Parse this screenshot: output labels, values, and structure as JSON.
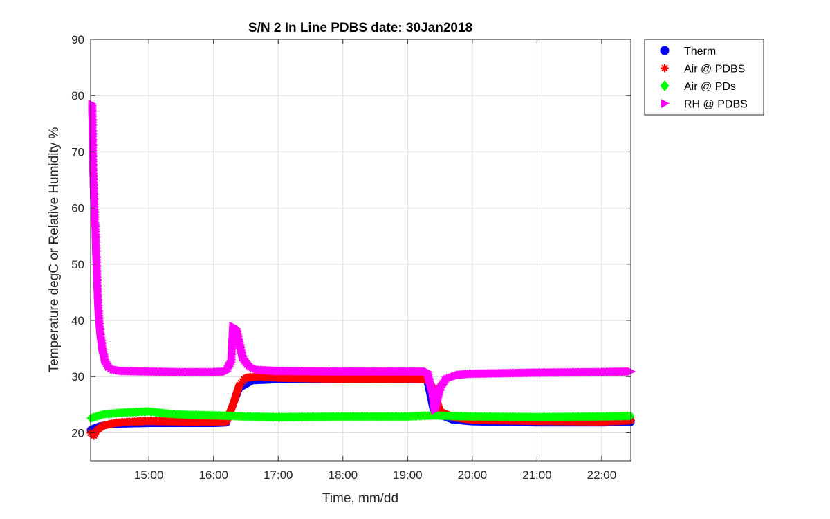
{
  "chart_data": {
    "type": "scatter",
    "title": "S/N 2 In Line PDBS date: 30Jan2018",
    "xlabel": "Time, mm/dd",
    "ylabel": "Temperature degC or Relative Humidity %",
    "x_unit": "hours of day",
    "xlim": [
      14.1,
      22.45
    ],
    "ylim": [
      15,
      90
    ],
    "x_ticks": [
      15,
      16,
      17,
      18,
      19,
      20,
      21,
      22
    ],
    "x_tick_labels": [
      "15:00",
      "16:00",
      "17:00",
      "18:00",
      "19:00",
      "20:00",
      "21:00",
      "22:00"
    ],
    "y_ticks": [
      20,
      30,
      40,
      50,
      60,
      70,
      80,
      90
    ],
    "y_tick_labels": [
      "20",
      "30",
      "40",
      "50",
      "60",
      "70",
      "80",
      "90"
    ],
    "grid": true,
    "legend_position": "outside-top-right",
    "series": [
      {
        "name": "Therm",
        "marker": "circle",
        "color": "#0000ff",
        "x": [
          14.1,
          14.15,
          14.25,
          14.4,
          14.6,
          15.0,
          15.5,
          16.0,
          16.2,
          16.3,
          16.4,
          16.6,
          17.0,
          18.0,
          19.0,
          19.2,
          19.3,
          19.4,
          19.5,
          19.7,
          20.0,
          21.0,
          22.0,
          22.45
        ],
        "y": [
          20.5,
          20.8,
          21.2,
          21.5,
          21.6,
          21.7,
          21.7,
          21.7,
          21.8,
          25.0,
          28.0,
          29.3,
          29.5,
          29.5,
          29.5,
          29.5,
          29.5,
          24.0,
          23.2,
          22.3,
          22.0,
          21.8,
          21.8,
          21.9
        ]
      },
      {
        "name": "Air @ PDBS",
        "marker": "asterisk",
        "color": "#ff0000",
        "x": [
          14.1,
          14.15,
          14.2,
          14.3,
          14.5,
          14.8,
          15.0,
          15.5,
          16.0,
          16.2,
          16.3,
          16.4,
          16.5,
          16.7,
          17.0,
          18.0,
          19.0,
          19.3,
          19.4,
          19.5,
          19.7,
          20.0,
          21.0,
          22.0,
          22.45
        ],
        "y": [
          20.0,
          19.5,
          20.5,
          21.3,
          21.8,
          22.0,
          22.1,
          22.0,
          21.9,
          22.0,
          25.0,
          28.5,
          29.8,
          30.0,
          29.8,
          29.6,
          29.6,
          29.5,
          27.8,
          23.8,
          22.8,
          22.3,
          22.1,
          22.0,
          22.2
        ]
      },
      {
        "name": "Air @ PDs",
        "marker": "diamond",
        "color": "#00ff00",
        "x": [
          14.1,
          14.3,
          14.6,
          15.0,
          15.3,
          15.6,
          16.0,
          16.5,
          17.0,
          18.0,
          19.0,
          19.4,
          19.6,
          20.0,
          21.0,
          22.0,
          22.45
        ],
        "y": [
          22.6,
          23.3,
          23.6,
          23.8,
          23.4,
          23.2,
          23.1,
          22.9,
          22.8,
          22.9,
          22.9,
          23.1,
          23.0,
          22.9,
          22.8,
          22.9,
          23.0
        ]
      },
      {
        "name": "RH @ PDBS",
        "marker": "triangle-right",
        "color": "#ff00ff",
        "x": [
          14.12,
          14.135,
          14.15,
          14.16,
          14.17,
          14.175,
          14.18,
          14.19,
          14.2,
          14.21,
          14.22,
          14.23,
          14.25,
          14.28,
          14.32,
          14.38,
          14.45,
          14.6,
          15.0,
          15.5,
          16.0,
          16.2,
          16.27,
          16.3,
          16.35,
          16.4,
          16.45,
          16.55,
          16.7,
          17.0,
          18.0,
          19.0,
          19.3,
          19.38,
          19.42,
          19.45,
          19.5,
          19.6,
          19.8,
          20.0,
          21.0,
          22.0,
          22.45
        ],
        "y": [
          78.5,
          67.5,
          61.5,
          58.0,
          57.0,
          55.0,
          52.5,
          49.5,
          46.5,
          43.5,
          41.5,
          40.0,
          37.5,
          35.0,
          33.0,
          31.8,
          31.3,
          31.0,
          30.9,
          30.8,
          30.8,
          30.9,
          32.5,
          39.0,
          38.5,
          36.0,
          33.5,
          32.0,
          31.2,
          31.0,
          30.9,
          30.9,
          30.9,
          27.5,
          24.0,
          25.5,
          27.8,
          29.5,
          30.3,
          30.5,
          30.7,
          30.8,
          30.9
        ]
      }
    ]
  }
}
